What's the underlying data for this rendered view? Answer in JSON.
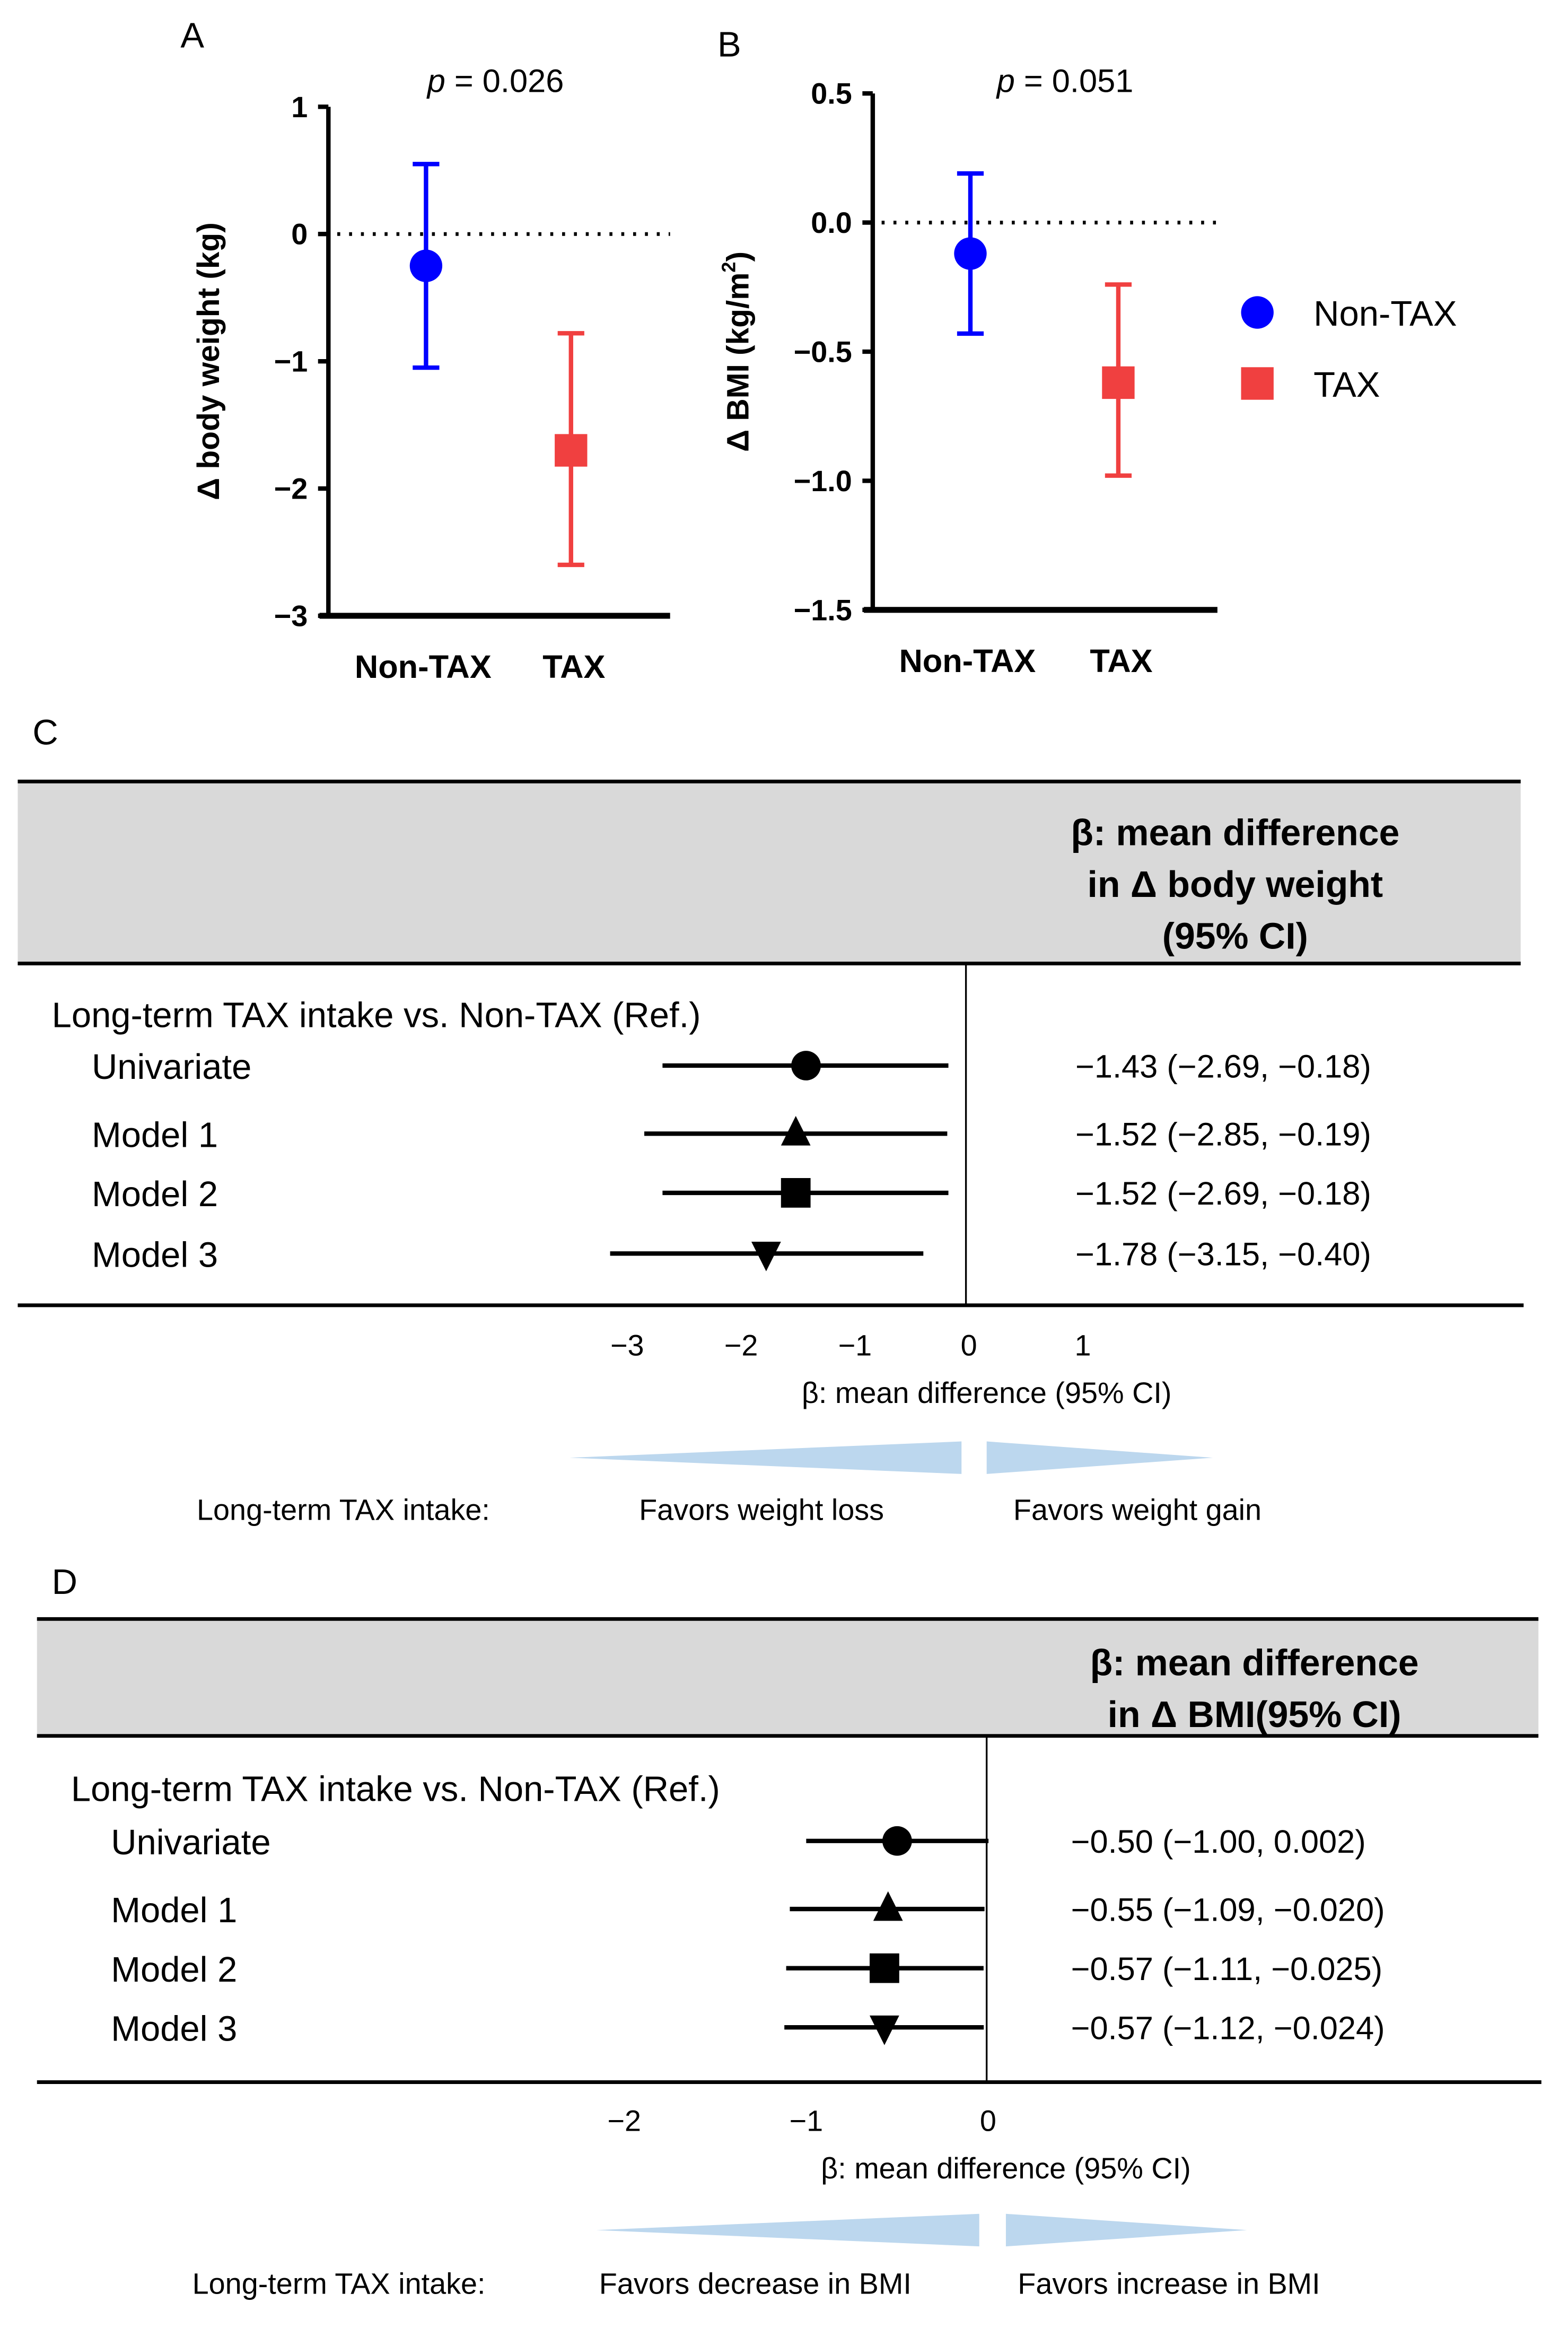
{
  "chart_data": [
    {
      "panel": "A",
      "type": "scatter",
      "p_prefix": "p",
      "p_text": " = 0.026",
      "ylabel": "Δ body weight (kg)",
      "ylim": [
        -3,
        1
      ],
      "yticks": [
        "1",
        "0",
        "−1",
        "−2",
        "−3"
      ],
      "ytick_values": [
        1,
        0,
        -1,
        -2,
        -3
      ],
      "categories": [
        "Non-TAX",
        "TAX"
      ],
      "series": [
        {
          "name": "Non-TAX",
          "mean": -0.25,
          "ci": [
            -1.05,
            0.55
          ],
          "color": "#0000ff",
          "marker": "circle"
        },
        {
          "name": "TAX",
          "mean": -1.7,
          "ci": [
            -2.6,
            -0.78
          ],
          "color": "#f04040",
          "marker": "square"
        }
      ],
      "reference_line": 0
    },
    {
      "panel": "B",
      "type": "scatter",
      "p_prefix": "p",
      "p_text": " = 0.051",
      "ylabel": "Δ BMI (kg/m",
      "ylabel_sup": "2",
      "ylabel_end": ")",
      "ylim": [
        -1.5,
        0.5
      ],
      "yticks": [
        "0.5",
        "0.0",
        "−0.5",
        "−1.0",
        "−1.5"
      ],
      "ytick_values": [
        0.5,
        0,
        -0.5,
        -1,
        -1.5
      ],
      "categories": [
        "Non-TAX",
        "TAX"
      ],
      "series": [
        {
          "name": "Non-TAX",
          "mean": -0.12,
          "ci": [
            -0.43,
            0.19
          ],
          "color": "#0000ff",
          "marker": "circle"
        },
        {
          "name": "TAX",
          "mean": -0.62,
          "ci": [
            -0.98,
            -0.24
          ],
          "color": "#f04040",
          "marker": "square"
        }
      ],
      "reference_line": 0,
      "legend": {
        "placement": "right",
        "entries": [
          "Non-TAX",
          "TAX"
        ]
      }
    },
    {
      "panel": "C",
      "type": "forest",
      "header": [
        "β: mean difference",
        "in Δ body weight",
        "(95% CI)"
      ],
      "group_label": "Long-term TAX intake vs. Non-TAX (Ref.)",
      "rows": [
        {
          "label": "Univariate",
          "beta": -1.43,
          "ci": [
            -2.69,
            -0.18
          ],
          "text": "−1.43 (−2.69, −0.18)",
          "marker": "circle"
        },
        {
          "label": "Model 1",
          "beta": -1.52,
          "ci": [
            -2.85,
            -0.19
          ],
          "text": "−1.52 (−2.85, −0.19)",
          "marker": "triangle-up"
        },
        {
          "label": "Model 2",
          "beta": -1.52,
          "ci": [
            -2.69,
            -0.18
          ],
          "text": "−1.52 (−2.69, −0.18)",
          "marker": "square"
        },
        {
          "label": "Model 3",
          "beta": -1.78,
          "ci": [
            -3.15,
            -0.4
          ],
          "text": "−1.78 (−3.15, −0.40)",
          "marker": "triangle-down"
        }
      ],
      "xticks": [
        "−3",
        "−2",
        "−1",
        "0",
        "1"
      ],
      "xtick_values": [
        -3,
        -2,
        -1,
        0,
        1
      ],
      "xlabel": "β: mean difference (95% CI)",
      "favor_prefix": "Long-term TAX intake:",
      "favor_left": "Favors weight loss",
      "favor_right": "Favors weight gain",
      "arrow_color": "#bcd7ee"
    },
    {
      "panel": "D",
      "type": "forest",
      "header": [
        "β: mean difference",
        "in Δ BMI(95% CI)"
      ],
      "group_label": "Long-term TAX intake vs. Non-TAX (Ref.)",
      "rows": [
        {
          "label": "Univariate",
          "beta": -0.5,
          "ci": [
            -1.0,
            0.002
          ],
          "text": "−0.50 (−1.00, 0.002)",
          "marker": "circle"
        },
        {
          "label": "Model 1",
          "beta": -0.55,
          "ci": [
            -1.09,
            -0.02
          ],
          "text": "−0.55 (−1.09, −0.020)",
          "marker": "triangle-up"
        },
        {
          "label": "Model 2",
          "beta": -0.57,
          "ci": [
            -1.11,
            -0.025
          ],
          "text": "−0.57 (−1.11, −0.025)",
          "marker": "square"
        },
        {
          "label": "Model 3",
          "beta": -0.57,
          "ci": [
            -1.12,
            -0.024
          ],
          "text": "−0.57 (−1.12, −0.024)",
          "marker": "triangle-down"
        }
      ],
      "xticks": [
        "−2",
        "−1",
        "0"
      ],
      "xtick_values": [
        -2,
        -1,
        0
      ],
      "xlabel": "β: mean difference (95% CI)",
      "favor_prefix": "Long-term TAX intake:",
      "favor_left": "Favors decrease in BMI",
      "favor_right": "Favors increase in BMI",
      "arrow_color": "#bcd7ee"
    }
  ]
}
